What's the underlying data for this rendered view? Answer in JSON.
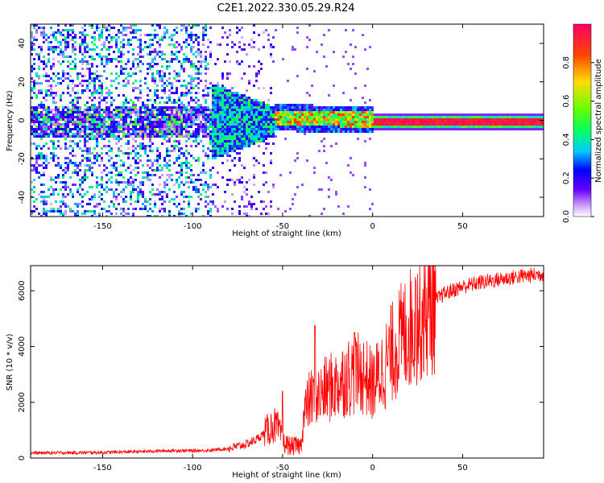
{
  "title": "C2E1.2022.330.05.29.R24",
  "chart_data": [
    {
      "type": "heatmap",
      "xlabel": "Height of straight line (km)",
      "ylabel": "Frequency (Hz)",
      "xlim": [
        -190,
        95
      ],
      "ylim": [
        -50,
        50
      ],
      "xticks": [
        -150,
        -100,
        -50,
        0,
        50
      ],
      "xtick_labels": [
        "-150",
        "-100",
        "-50",
        "0",
        "50"
      ],
      "yticks": [
        -40,
        -20,
        0,
        20,
        40
      ],
      "ytick_labels": [
        "-40",
        "-20",
        "0",
        "20",
        "40"
      ],
      "colorbar": {
        "label": "Normalized spectral amplitude",
        "range": [
          0,
          1
        ],
        "ticks": [
          0.0,
          0.2,
          0.4,
          0.6,
          0.8
        ],
        "tick_labels": [
          "0.0",
          "0.2",
          "0.4",
          "0.6",
          "0.8"
        ],
        "colors": [
          "#ffffff",
          "#cc99ff",
          "#6600ff",
          "#0000ff",
          "#00ccff",
          "#00ff66",
          "#66ff00",
          "#ffdd00",
          "#ff4400",
          "#ff0066"
        ]
      },
      "signal_band": {
        "center_frequency": 0,
        "regions": [
          {
            "x_from": -190,
            "x_to": -90,
            "pattern": "scattered noise, spread over full frequency range"
          },
          {
            "x_from": -90,
            "x_to": -55,
            "pattern": "broadening noise band near 0 Hz"
          },
          {
            "x_from": -55,
            "x_to": 0,
            "pattern": "signal emerging, amplitude 0.4-0.9"
          },
          {
            "x_from": 0,
            "x_to": 95,
            "pattern": "strong narrow tone at 0 Hz, amplitude ~1.0"
          }
        ]
      },
      "grid": false
    },
    {
      "type": "line",
      "xlabel": "Height of straight line (km)",
      "ylabel": "SNR (10 * v/v)",
      "xlim": [
        -190,
        95
      ],
      "ylim": [
        0,
        6900
      ],
      "xticks": [
        -150,
        -100,
        -50,
        0,
        50
      ],
      "xtick_labels": [
        "-150",
        "-100",
        "-50",
        "0",
        "50"
      ],
      "yticks": [
        0,
        2000,
        4000,
        6000
      ],
      "ytick_labels": [
        "0",
        "2000",
        "4000",
        "6000"
      ],
      "color": "#ff0000",
      "grid": false,
      "series": [
        {
          "x": [
            -190,
            -170,
            -150,
            -130,
            -120,
            -110,
            -100,
            -90,
            -80,
            -70,
            -65,
            -60,
            -55,
            -52,
            -50,
            -45,
            -40,
            -38,
            -35,
            -30,
            -25,
            -20,
            -15,
            -10,
            -5,
            0,
            5,
            10,
            15,
            20,
            25,
            30,
            35,
            40,
            50,
            60,
            70,
            80,
            95
          ],
          "y": [
            180,
            190,
            200,
            230,
            250,
            270,
            260,
            280,
            340,
            500,
            650,
            900,
            1200,
            1000,
            550,
            420,
            450,
            1600,
            2100,
            2200,
            2500,
            2600,
            2900,
            3000,
            3000,
            2600,
            3100,
            3700,
            4200,
            4600,
            5000,
            5300,
            5650,
            5900,
            6150,
            6300,
            6400,
            6500,
            6600
          ]
        }
      ],
      "peaks": [
        {
          "x": -50,
          "y": 2400
        },
        {
          "x": -32,
          "y": 4750
        },
        {
          "x": -10,
          "y": 4500
        },
        {
          "x": 24,
          "y": 6350
        }
      ]
    }
  ]
}
